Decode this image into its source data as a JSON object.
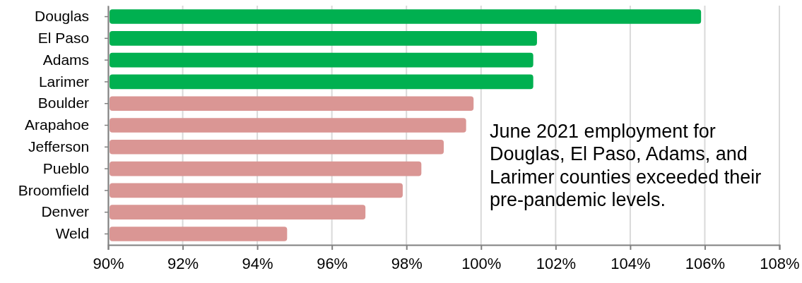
{
  "chart_data": {
    "type": "bar",
    "orientation": "horizontal",
    "categories": [
      "Douglas",
      "El Paso",
      "Adams",
      "Larimer",
      "Boulder",
      "Arapahoe",
      "Jefferson",
      "Pueblo",
      "Broomfield",
      "Denver",
      "Weld"
    ],
    "values": [
      105.9,
      101.5,
      101.4,
      101.4,
      99.8,
      99.6,
      99.0,
      98.4,
      97.9,
      96.9,
      94.8
    ],
    "colors": [
      "#00b050",
      "#00b050",
      "#00b050",
      "#00b050",
      "#da9694",
      "#da9694",
      "#da9694",
      "#da9694",
      "#da9694",
      "#da9694",
      "#da9694"
    ],
    "xlim": [
      90,
      108
    ],
    "xticks": [
      {
        "value": 90,
        "label": "90%"
      },
      {
        "value": 92,
        "label": "92%"
      },
      {
        "value": 94,
        "label": "94%"
      },
      {
        "value": 96,
        "label": "96%"
      },
      {
        "value": 98,
        "label": "98%"
      },
      {
        "value": 100,
        "label": "100%"
      },
      {
        "value": 102,
        "label": "102%"
      },
      {
        "value": 104,
        "label": "104%"
      },
      {
        "value": 106,
        "label": "106%"
      },
      {
        "value": 108,
        "label": "108%"
      }
    ],
    "grid": "x",
    "annotations": [
      "June 2021 employment for Douglas, El Paso, Adams, and Larimer counties exceeded their pre-pandemic levels."
    ]
  }
}
